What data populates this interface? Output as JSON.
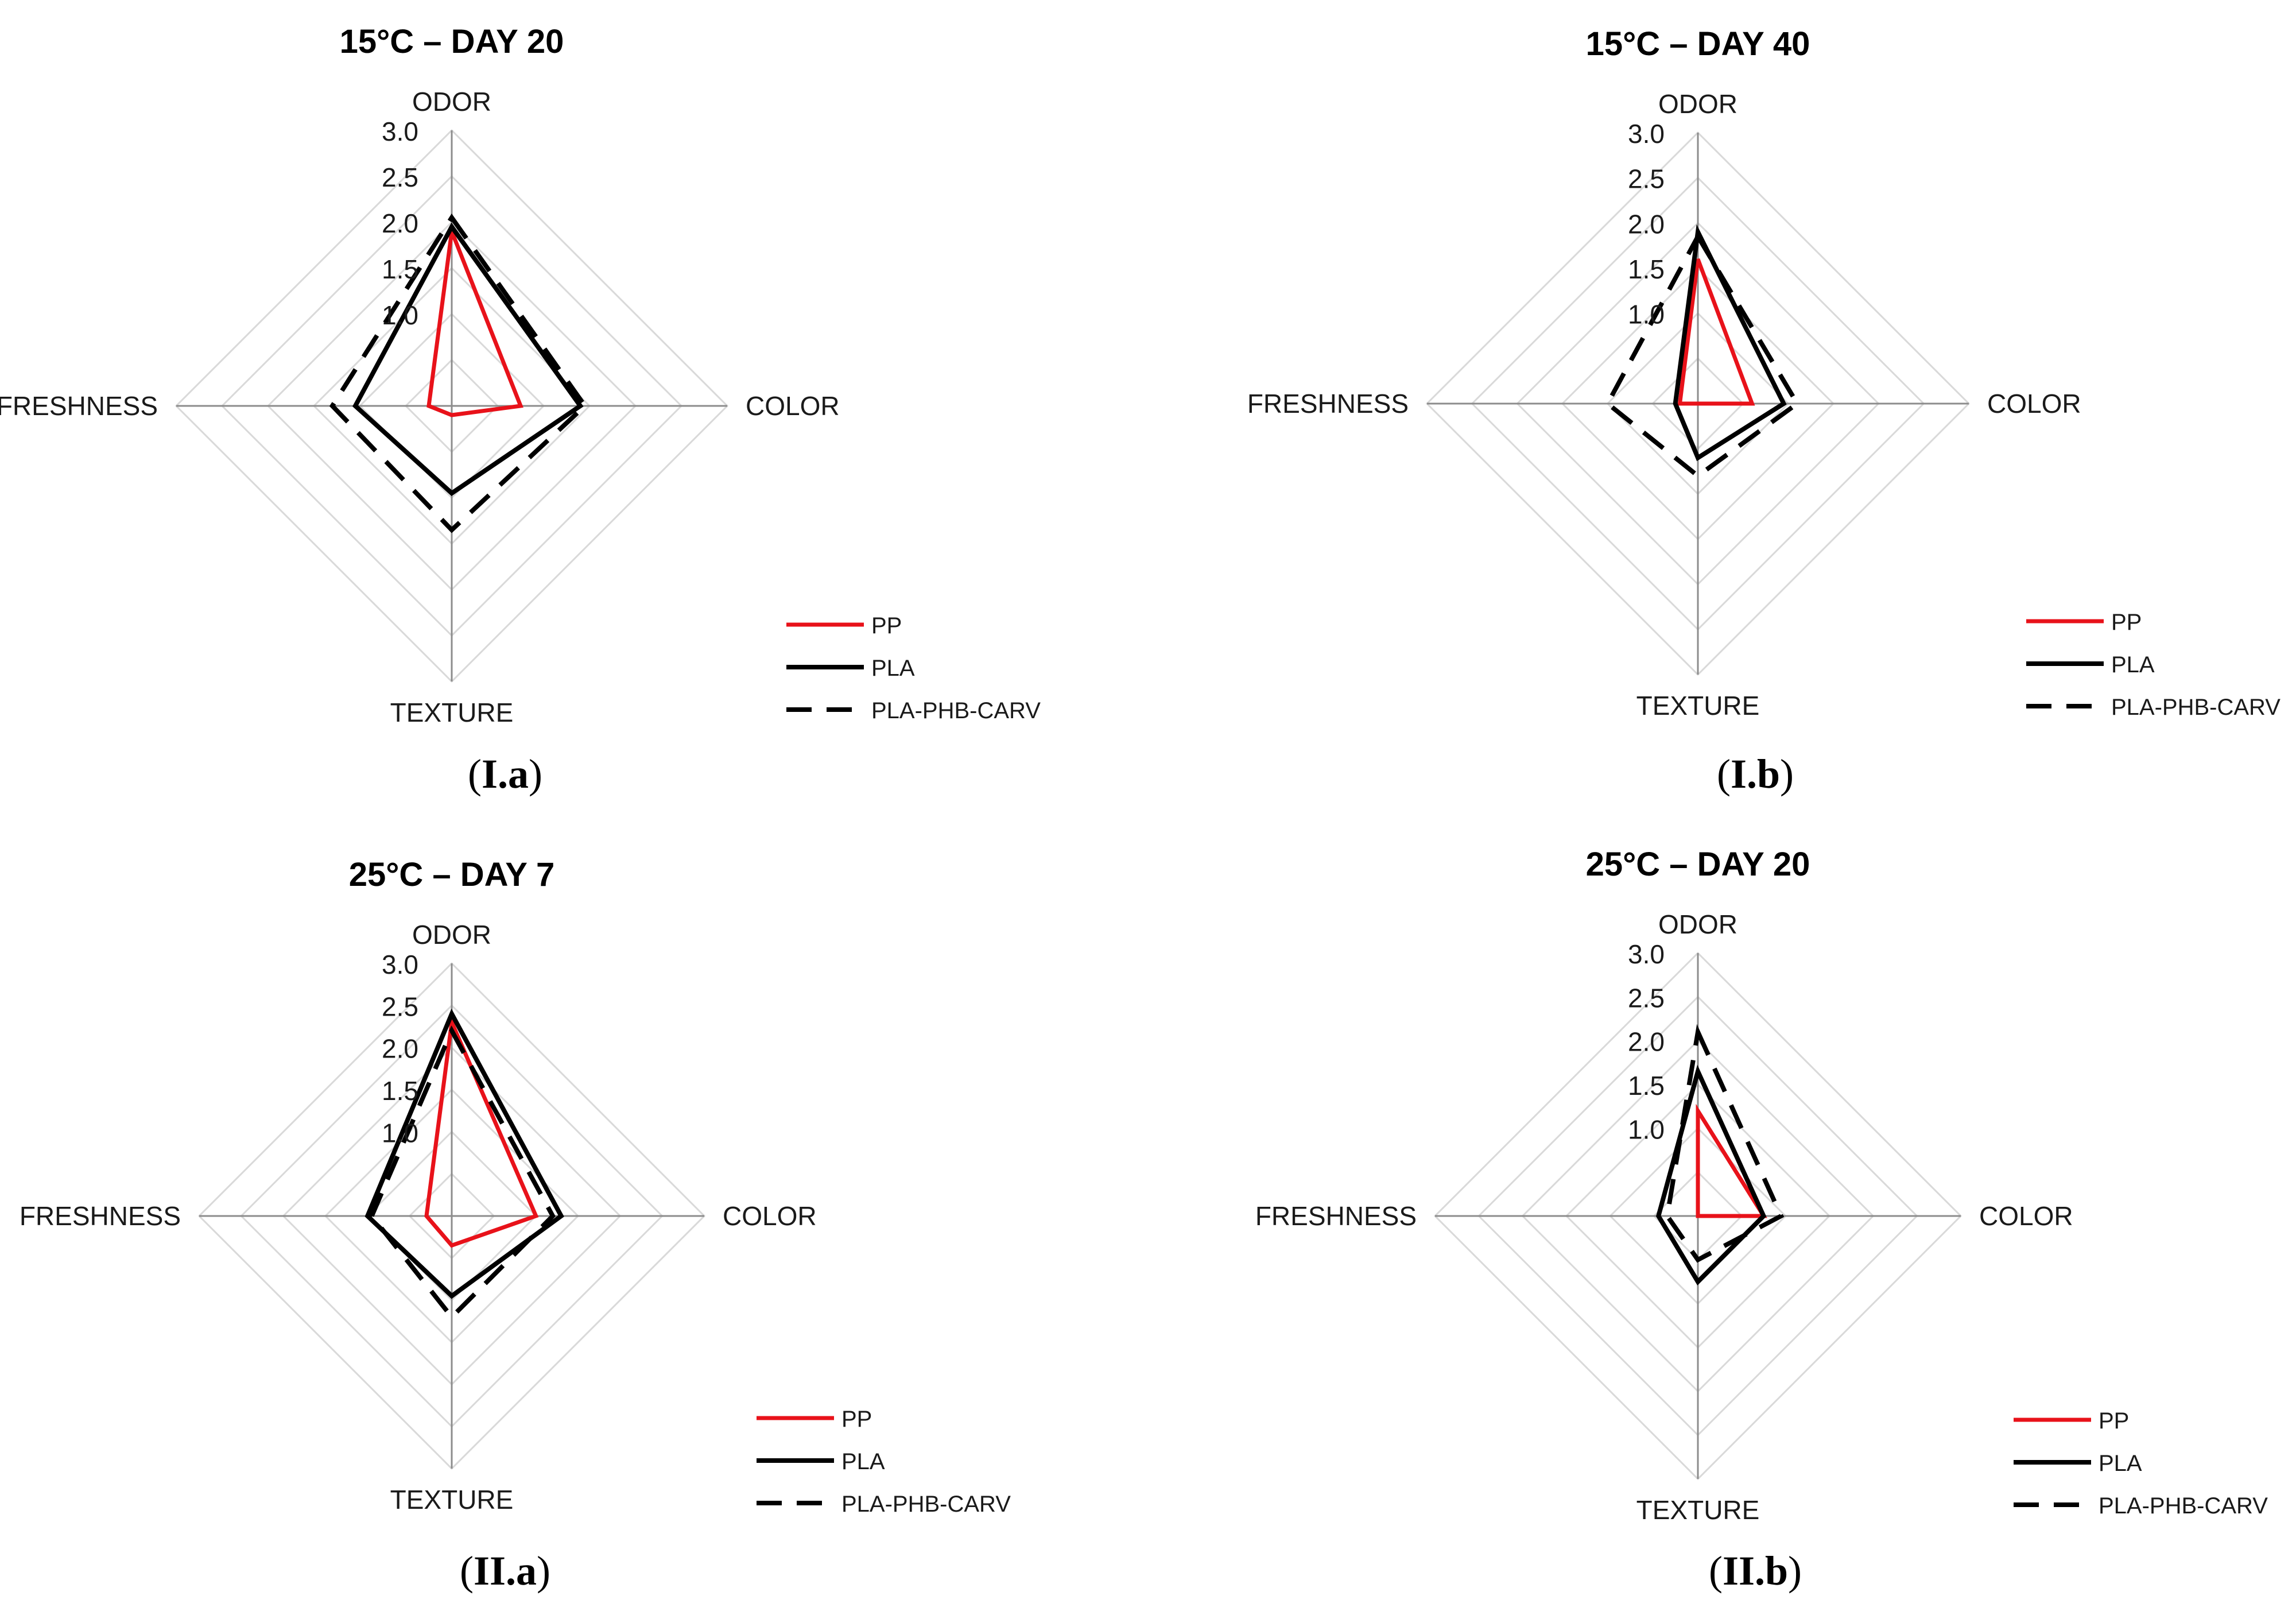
{
  "colors": {
    "grid": "#d9d9d9",
    "axis": "#8c8c8c",
    "pp": "#e8121a",
    "pla": "#000000",
    "pla_phb_carv": "#000000"
  },
  "chart_data": [
    {
      "type": "radar",
      "title": "15°C – DAY 20",
      "caption": {
        "prefix": "(",
        "bold": "I.a",
        "suffix": ")"
      },
      "axes": [
        "ODOR",
        "COLOR",
        "TEXTURE",
        "FRESHNESS"
      ],
      "rlim": [
        0.0,
        3.0
      ],
      "ticks": [
        "3.0",
        "2.5",
        "2.0",
        "1.5",
        "1.0"
      ],
      "tick_values": [
        3.0,
        2.5,
        2.0,
        1.5,
        1.0
      ],
      "series": [
        {
          "name": "PP",
          "style": "solid-red",
          "values": [
            1.9,
            0.75,
            0.1,
            0.25
          ]
        },
        {
          "name": "PLA",
          "style": "solid-black",
          "values": [
            1.95,
            1.4,
            0.95,
            1.05
          ]
        },
        {
          "name": "PLA-PHB-CARV",
          "style": "dashed-black",
          "values": [
            2.05,
            1.45,
            1.35,
            1.3
          ]
        }
      ]
    },
    {
      "type": "radar",
      "title": "15°C – DAY 40",
      "caption": {
        "prefix": "(",
        "bold": "I.b",
        "suffix": ")"
      },
      "axes": [
        "ODOR",
        "COLOR",
        "TEXTURE",
        "FRESHNESS"
      ],
      "rlim": [
        0.0,
        3.0
      ],
      "ticks": [
        "3.0",
        "2.5",
        "2.0",
        "1.5",
        "1.0"
      ],
      "tick_values": [
        3.0,
        2.5,
        2.0,
        1.5,
        1.0
      ],
      "series": [
        {
          "name": "PP",
          "style": "solid-red",
          "values": [
            1.6,
            0.6,
            0.0,
            0.2
          ]
        },
        {
          "name": "PLA",
          "style": "solid-black",
          "values": [
            1.9,
            0.95,
            0.6,
            0.25
          ]
        },
        {
          "name": "PLA-PHB-CARV",
          "style": "dashed-black",
          "values": [
            1.85,
            1.1,
            0.8,
            1.0
          ]
        }
      ]
    },
    {
      "type": "radar",
      "title": "25°C – DAY 7",
      "caption": {
        "prefix": "(",
        "bold": "II.a",
        "suffix": ")"
      },
      "axes": [
        "ODOR",
        "COLOR",
        "TEXTURE",
        "FRESHNESS"
      ],
      "rlim": [
        0.0,
        3.0
      ],
      "ticks": [
        "3.0",
        "2.5",
        "2.0",
        "1.5",
        "1.0"
      ],
      "tick_values": [
        3.0,
        2.5,
        2.0,
        1.5,
        1.0
      ],
      "series": [
        {
          "name": "PP",
          "style": "solid-red",
          "values": [
            2.3,
            1.0,
            0.35,
            0.3
          ]
        },
        {
          "name": "PLA",
          "style": "solid-black",
          "values": [
            2.4,
            1.3,
            0.95,
            1.0
          ]
        },
        {
          "name": "PLA-PHB-CARV",
          "style": "dashed-black",
          "values": [
            2.2,
            1.2,
            1.2,
            0.95
          ]
        }
      ]
    },
    {
      "type": "radar",
      "title": "25°C – DAY 20",
      "caption": {
        "prefix": "(",
        "bold": "II.b",
        "suffix": ")"
      },
      "axes": [
        "ODOR",
        "COLOR",
        "TEXTURE",
        "FRESHNESS"
      ],
      "rlim": [
        0.0,
        3.0
      ],
      "ticks": [
        "3.0",
        "2.5",
        "2.0",
        "1.5",
        "1.0"
      ],
      "tick_values": [
        3.0,
        2.5,
        2.0,
        1.5,
        1.0
      ],
      "series": [
        {
          "name": "PP",
          "style": "solid-red",
          "values": [
            1.2,
            0.75,
            0.0,
            0.0
          ]
        },
        {
          "name": "PLA",
          "style": "solid-black",
          "values": [
            1.65,
            0.75,
            0.75,
            0.45
          ]
        },
        {
          "name": "PLA-PHB-CARV",
          "style": "dashed-black",
          "values": [
            2.1,
            0.95,
            0.5,
            0.35
          ]
        }
      ]
    }
  ]
}
